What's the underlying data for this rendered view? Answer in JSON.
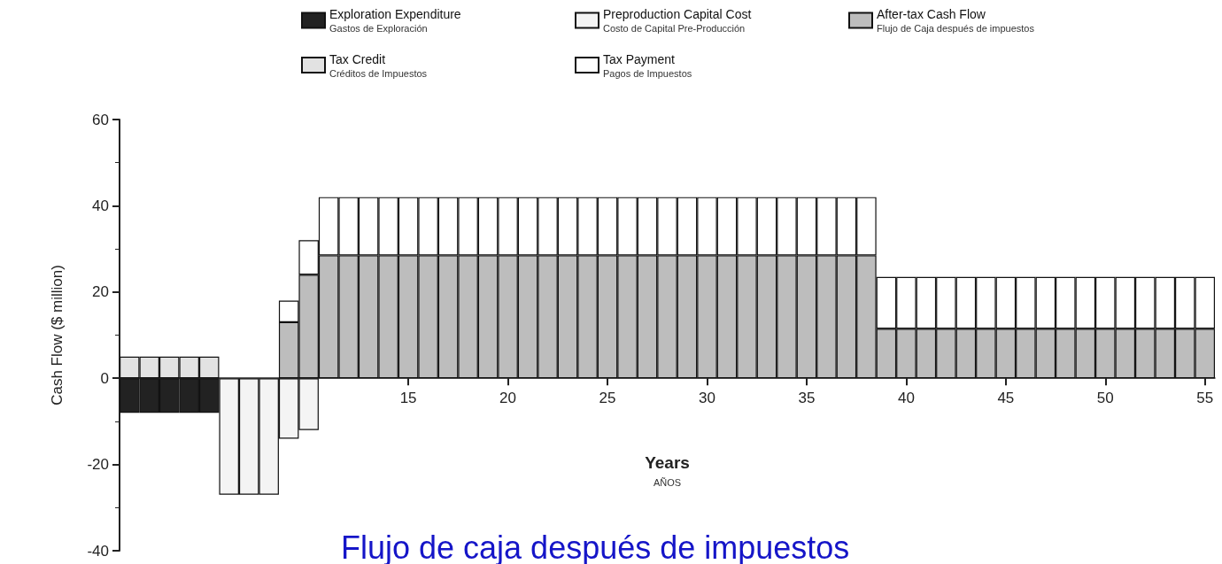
{
  "chart_data": {
    "type": "bar",
    "stacked": true,
    "title": "Flujo de caja después de impuestos",
    "xlabel": "Years\nAÑOS",
    "ylabel": "Cash Flow ($ million)",
    "categories": [
      null,
      null,
      null,
      null,
      null,
      null,
      null,
      null,
      null,
      null,
      null,
      null,
      null,
      null,
      "15",
      null,
      null,
      null,
      null,
      "20",
      null,
      null,
      null,
      null,
      "25",
      null,
      null,
      null,
      null,
      "30",
      null,
      null,
      null,
      null,
      "35",
      null,
      null,
      null,
      null,
      "40",
      null,
      null,
      null,
      null,
      "45",
      null,
      null,
      null,
      null,
      "50",
      null,
      null,
      null,
      null,
      "55"
    ],
    "series": [
      {
        "name": "Exploration Expenditure\nGastos de Exploración",
        "color": "#222222",
        "values": [
          -8,
          -8,
          -8,
          -8,
          -8,
          null,
          null,
          null,
          null,
          null,
          null,
          null,
          null,
          null,
          null,
          null,
          null,
          null,
          null,
          null,
          null,
          null,
          null,
          null,
          null,
          null,
          null,
          null,
          null,
          null,
          null,
          null,
          null,
          null,
          null,
          null,
          null,
          null,
          null,
          null,
          null,
          null,
          null,
          null,
          null,
          null,
          null,
          null,
          null,
          null,
          null,
          null,
          null,
          null,
          null
        ]
      },
      {
        "name": "Preproduction Capital Cost\nCosto de Capital Pre-Producción",
        "color": "#f4f4f4",
        "values": [
          null,
          null,
          null,
          null,
          null,
          -27,
          -27,
          -27,
          -14,
          -12,
          null,
          null,
          null,
          null,
          null,
          null,
          null,
          null,
          null,
          null,
          null,
          null,
          null,
          null,
          null,
          null,
          null,
          null,
          null,
          null,
          null,
          null,
          null,
          null,
          null,
          null,
          null,
          null,
          null,
          null,
          null,
          null,
          null,
          null,
          null,
          null,
          null,
          null,
          null,
          null,
          null,
          null,
          null,
          null,
          null
        ]
      },
      {
        "name": "After-tax Cash Flow\nFlujo de Caja después de impuestos",
        "color": "#bdbdbd",
        "values": [
          null,
          null,
          null,
          null,
          null,
          null,
          null,
          null,
          13,
          24,
          28.5,
          28.5,
          28.5,
          28.5,
          28.5,
          28.5,
          28.5,
          28.5,
          28.5,
          28.5,
          28.5,
          28.5,
          28.5,
          28.5,
          28.5,
          28.5,
          28.5,
          28.5,
          28.5,
          28.5,
          28.5,
          28.5,
          28.5,
          28.5,
          28.5,
          28.5,
          28.5,
          28.5,
          11.5,
          11.5,
          11.5,
          11.5,
          11.5,
          11.5,
          11.5,
          11.5,
          11.5,
          11.5,
          11.5,
          11.5,
          11.5,
          11.5,
          11.5,
          11.5,
          11.5
        ]
      },
      {
        "name": "Tax Credit\nCréditos de Impuestos",
        "color": "#e2e2e2",
        "values": [
          5,
          5,
          5,
          5,
          5,
          null,
          null,
          null,
          null,
          null,
          null,
          null,
          null,
          null,
          null,
          null,
          null,
          null,
          null,
          null,
          null,
          null,
          null,
          null,
          null,
          null,
          null,
          null,
          null,
          null,
          null,
          null,
          null,
          null,
          null,
          null,
          null,
          null,
          null,
          null,
          null,
          null,
          null,
          null,
          null,
          null,
          null,
          null,
          null,
          null,
          null,
          null,
          null,
          null,
          null
        ]
      },
      {
        "name": "Tax Payment\nPagos de Impuestos",
        "color": "#ffffff",
        "values": [
          null,
          null,
          null,
          null,
          null,
          null,
          null,
          null,
          5,
          8,
          13.5,
          13.5,
          13.5,
          13.5,
          13.5,
          13.5,
          13.5,
          13.5,
          13.5,
          13.5,
          13.5,
          13.5,
          13.5,
          13.5,
          13.5,
          13.5,
          13.5,
          13.5,
          13.5,
          13.5,
          13.5,
          13.5,
          13.5,
          13.5,
          13.5,
          13.5,
          13.5,
          13.5,
          12,
          12,
          12,
          12,
          12,
          12,
          12,
          12,
          12,
          12,
          12,
          12,
          12,
          12,
          12,
          12,
          12
        ]
      }
    ],
    "ylim": [
      -40,
      60
    ],
    "yticks": [
      -40,
      -20,
      0,
      20,
      40,
      60
    ],
    "grid": false,
    "legend": "top"
  }
}
